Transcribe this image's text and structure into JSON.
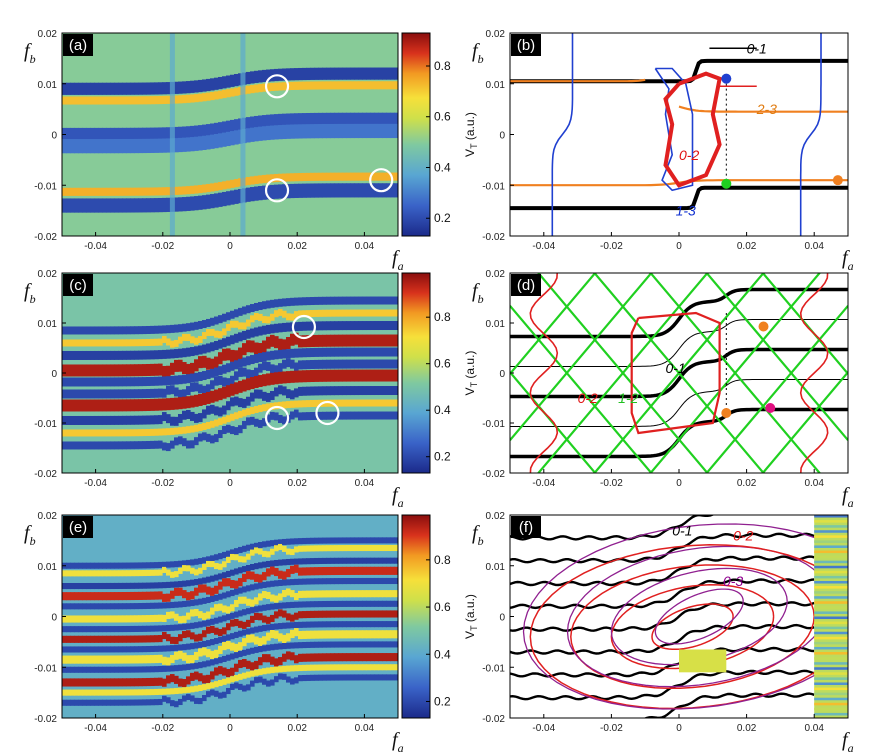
{
  "figure": {
    "panels": [
      {
        "id": "a",
        "label": "(a)",
        "kind": "map"
      },
      {
        "id": "b",
        "label": "(b)",
        "kind": "lines"
      },
      {
        "id": "c",
        "label": "(c)",
        "kind": "map"
      },
      {
        "id": "d",
        "label": "(d)",
        "kind": "lines"
      },
      {
        "id": "e",
        "label": "(e)",
        "kind": "map"
      },
      {
        "id": "f",
        "label": "(f)",
        "kind": "lines"
      }
    ],
    "x_axis": {
      "symbol": "f",
      "sub": "a",
      "ticks": [
        "-0.04",
        "-0.02",
        "0",
        "0.02",
        "0.04"
      ],
      "tick_values": [
        -0.04,
        -0.02,
        0,
        0.02,
        0.04
      ],
      "range": [
        -0.05,
        0.05
      ]
    },
    "y_axis": {
      "symbol": "f",
      "sub": "b",
      "ticks": [
        "0.02",
        "0.01",
        "0",
        "-0.01",
        "-0.02"
      ],
      "tick_values": [
        0.02,
        0.01,
        0,
        -0.01,
        -0.02
      ],
      "range": [
        -0.02,
        0.02
      ]
    },
    "colorbar": {
      "label": "V",
      "label_sub": "T",
      "label_tail": " (a.u.)",
      "ab": {
        "ticks": [
          "0.8",
          "0.6",
          "0.4",
          "0.2"
        ],
        "tick_values": [
          0.8,
          0.6,
          0.4,
          0.2
        ],
        "range": [
          0.13,
          0.93
        ]
      },
      "ce": {
        "ticks": [
          "0.8",
          "0.6",
          "0.4",
          "0.2"
        ],
        "tick_values": [
          0.8,
          0.6,
          0.4,
          0.2
        ],
        "range": [
          0.13,
          0.99
        ]
      },
      "colors": [
        "#1b2a8a",
        "#3a63c8",
        "#59a6d2",
        "#7fc9a0",
        "#cfe04a",
        "#f6e03a",
        "#f29a22",
        "#d8321c",
        "#8a0e0e"
      ]
    },
    "curve_labels": {
      "b": [
        {
          "text": "0-1",
          "color": "#000000"
        },
        {
          "text": "2-3",
          "color": "#e07b10"
        },
        {
          "text": "0-2",
          "color": "#e01010"
        },
        {
          "text": "1-3",
          "color": "#1030d0"
        }
      ],
      "d": [
        {
          "text": "0-1",
          "color": "#000000"
        },
        {
          "text": "0-2",
          "color": "#e01010"
        },
        {
          "text": "1-2",
          "color": "#20c020"
        }
      ],
      "f": [
        {
          "text": "0-1",
          "color": "#000000"
        },
        {
          "text": "0-2",
          "color": "#e01010"
        },
        {
          "text": "0-3",
          "color": "#900090"
        }
      ]
    },
    "colors": {
      "black": "#000000",
      "orange": "#f08020",
      "red": "#e02020",
      "blue": "#2040d0",
      "green": "#20d020",
      "magenta": "#e01080",
      "purple": "#902090"
    }
  },
  "chart_data": [
    {
      "type": "heatmap",
      "panel": "a",
      "title": "(a)",
      "xlabel": "f_a",
      "ylabel": "f_b",
      "xlim": [
        -0.05,
        0.05
      ],
      "ylim": [
        -0.02,
        0.02
      ],
      "zlim": [
        0.13,
        0.93
      ],
      "bands": [
        {
          "y": 0.0105,
          "slope": 0.02,
          "value": 0.22
        },
        {
          "y": 0.008,
          "slope": 0.02,
          "value": 0.75
        },
        {
          "y": 0.002,
          "slope": 0.02,
          "value": 0.25
        },
        {
          "y": -0.0005,
          "slope": 0.02,
          "value": 0.28
        },
        {
          "y": -0.01,
          "slope": 0.02,
          "value": 0.75
        },
        {
          "y": -0.0125,
          "slope": 0.02,
          "value": 0.22
        }
      ],
      "circles": [
        [
          0.014,
          0.0095
        ],
        [
          0.014,
          -0.011
        ],
        [
          0.045,
          -0.009
        ]
      ]
    },
    {
      "type": "line",
      "panel": "b",
      "title": "(b)",
      "xlabel": "f_a",
      "ylabel": "f_b",
      "xlim": [
        -0.05,
        0.05
      ],
      "ylim": [
        -0.02,
        0.02
      ],
      "series": [
        {
          "name": "0-1"
        },
        {
          "name": "2-3"
        },
        {
          "name": "0-2"
        },
        {
          "name": "1-3"
        }
      ],
      "markers": [
        [
          0.014,
          0.011
        ],
        [
          0.014,
          -0.0097
        ],
        [
          0.047,
          -0.009
        ]
      ]
    },
    {
      "type": "heatmap",
      "panel": "c",
      "title": "(c)",
      "xlabel": "f_a",
      "ylabel": "f_b",
      "xlim": [
        -0.05,
        0.05
      ],
      "ylim": [
        -0.02,
        0.02
      ],
      "zlim": [
        0.13,
        0.99
      ],
      "circles": [
        [
          0.022,
          0.0092
        ],
        [
          0.014,
          -0.009
        ],
        [
          0.029,
          -0.008
        ]
      ]
    },
    {
      "type": "line",
      "panel": "d",
      "title": "(d)",
      "xlabel": "f_a",
      "ylabel": "f_b",
      "xlim": [
        -0.05,
        0.05
      ],
      "ylim": [
        -0.02,
        0.02
      ],
      "series": [
        {
          "name": "0-1"
        },
        {
          "name": "0-2"
        },
        {
          "name": "1-2"
        }
      ],
      "markers": [
        [
          0.025,
          0.0093
        ],
        [
          0.014,
          -0.008
        ],
        [
          0.027,
          -0.007
        ]
      ]
    },
    {
      "type": "heatmap",
      "panel": "e",
      "title": "(e)",
      "xlabel": "f_a",
      "ylabel": "f_b",
      "xlim": [
        -0.05,
        0.05
      ],
      "ylim": [
        -0.02,
        0.02
      ],
      "zlim": [
        0.13,
        0.99
      ]
    },
    {
      "type": "line",
      "panel": "f",
      "title": "(f)",
      "xlabel": "f_a",
      "ylabel": "f_b",
      "xlim": [
        -0.05,
        0.05
      ],
      "ylim": [
        -0.02,
        0.02
      ],
      "series": [
        {
          "name": "0-1"
        },
        {
          "name": "0-2"
        },
        {
          "name": "0-3"
        }
      ]
    }
  ]
}
